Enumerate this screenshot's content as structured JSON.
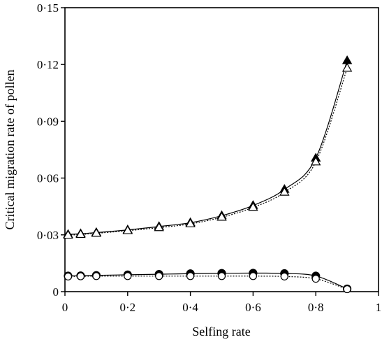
{
  "chart_data": {
    "type": "line",
    "xlabel": "Selfing rate",
    "ylabel": "Critical migration rate of pollen",
    "xlim": [
      0,
      1
    ],
    "ylim": [
      0,
      0.15
    ],
    "xticks": [
      0,
      0.2,
      0.4,
      0.6,
      0.8,
      1
    ],
    "xtick_labels": [
      "0",
      "0·2",
      "0·4",
      "0·6",
      "0·8",
      "1"
    ],
    "yticks": [
      0,
      0.03,
      0.06,
      0.09,
      0.12,
      0.15
    ],
    "ytick_labels": [
      "0",
      "0·03",
      "0·06",
      "0·09",
      "0·12",
      "0·15"
    ],
    "grid": false,
    "x": [
      0.01,
      0.05,
      0.1,
      0.2,
      0.3,
      0.4,
      0.5,
      0.6,
      0.7,
      0.8,
      0.9
    ],
    "series": [
      {
        "marker": "triangle-filled",
        "line": "solid",
        "values": [
          0.0302,
          0.0306,
          0.0312,
          0.0326,
          0.0344,
          0.0364,
          0.0401,
          0.0455,
          0.054,
          0.0705,
          0.122
        ]
      },
      {
        "marker": "triangle-open",
        "line": "dotted",
        "values": [
          0.0298,
          0.0302,
          0.0308,
          0.0322,
          0.0338,
          0.0358,
          0.0393,
          0.0445,
          0.0525,
          0.0685,
          0.118
        ]
      },
      {
        "marker": "circle-filled",
        "line": "solid",
        "values": [
          0.0083,
          0.0084,
          0.0086,
          0.0089,
          0.0092,
          0.0095,
          0.0097,
          0.0098,
          0.0096,
          0.0083,
          0.0015
        ]
      },
      {
        "marker": "circle-open",
        "line": "dotted",
        "values": [
          0.008,
          0.0081,
          0.0082,
          0.0082,
          0.0082,
          0.0082,
          0.0082,
          0.0082,
          0.008,
          0.0068,
          0.0013
        ]
      }
    ]
  }
}
